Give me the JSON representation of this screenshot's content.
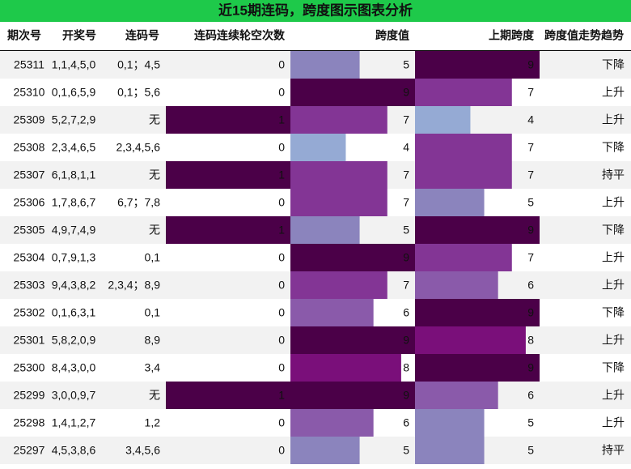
{
  "title": "近15期连码，跨度图示图表分析",
  "table": {
    "columns": [
      "期次号",
      "开奖号",
      "连码号",
      "连码连续轮空次数",
      "跨度值",
      "上期跨度",
      "跨度值走势趋势"
    ],
    "rows": [
      [
        "25311",
        "1,1,4,5,0",
        "0,1；4,5",
        0,
        5,
        9,
        "下降"
      ],
      [
        "25310",
        "0,1,6,5,9",
        "0,1；5,6",
        0,
        9,
        7,
        "上升"
      ],
      [
        "25309",
        "5,2,7,2,9",
        "无",
        1,
        7,
        4,
        "上升"
      ],
      [
        "25308",
        "2,3,4,6,5",
        "2,3,4,5,6",
        0,
        4,
        7,
        "下降"
      ],
      [
        "25307",
        "6,1,8,1,1",
        "无",
        1,
        7,
        7,
        "持平"
      ],
      [
        "25306",
        "1,7,8,6,7",
        "6,7；7,8",
        0,
        7,
        5,
        "上升"
      ],
      [
        "25305",
        "4,9,7,4,9",
        "无",
        1,
        5,
        9,
        "下降"
      ],
      [
        "25304",
        "0,7,9,1,3",
        "0,1",
        0,
        9,
        7,
        "上升"
      ],
      [
        "25303",
        "9,4,3,8,2",
        "2,3,4；8,9",
        0,
        7,
        6,
        "上升"
      ],
      [
        "25302",
        "0,1,6,3,1",
        "0,1",
        0,
        6,
        9,
        "下降"
      ],
      [
        "25301",
        "5,8,2,0,9",
        "8,9",
        0,
        9,
        8,
        "上升"
      ],
      [
        "25300",
        "8,4,3,0,0",
        "3,4",
        0,
        8,
        9,
        "下降"
      ],
      [
        "25299",
        "3,0,0,9,7",
        "无",
        1,
        9,
        6,
        "上升"
      ],
      [
        "25298",
        "1,4,1,2,7",
        "1,2",
        0,
        6,
        5,
        "上升"
      ],
      [
        "25297",
        "4,5,3,8,6",
        "3,4,5,6",
        0,
        5,
        5,
        "持平"
      ]
    ]
  },
  "bars": {
    "gap_lim": [
      0,
      1
    ],
    "span_lim": [
      0,
      9
    ],
    "gap_color": "#4b0048",
    "span_colors": [
      "#c9d6ea",
      "#c0cfe6",
      "#b0c2e0",
      "#a3b7da",
      "#95aad4",
      "#8b84bd",
      "#8a5aaa",
      "#833595",
      "#7a0f7a",
      "#4b0048"
    ]
  }
}
